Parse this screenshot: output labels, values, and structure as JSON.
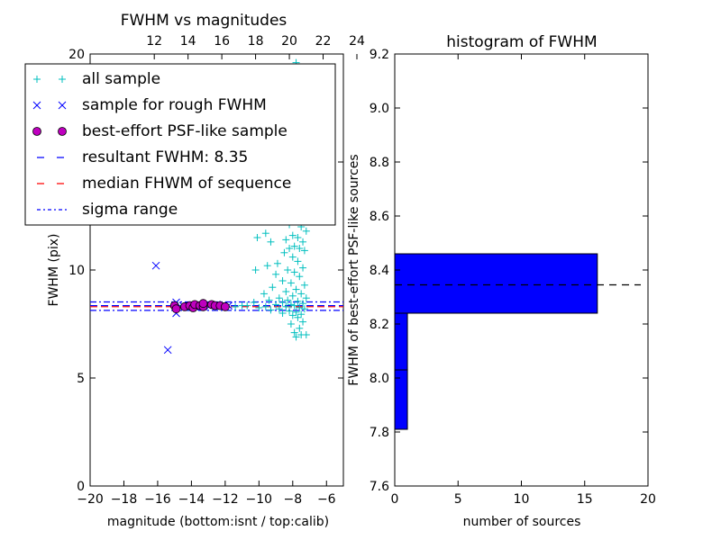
{
  "figure": {
    "left_title": "FWHM vs magnitudes",
    "right_title": "histogram of FWHM"
  },
  "chart_data": [
    {
      "type": "scatter",
      "title": "FWHM vs magnitudes",
      "xlabel": "magnitude (bottom:isnt / top:calib)",
      "ylabel": "FWHM (pix)",
      "xlim": [
        -20,
        -5
      ],
      "ylim": [
        0,
        20
      ],
      "x_ticks": [
        "−20",
        "−18",
        "−16",
        "−14",
        "−12",
        "−10",
        "−8",
        "−6"
      ],
      "x_tick_values": [
        -20,
        -18,
        -16,
        -14,
        -12,
        -10,
        -8,
        -6
      ],
      "y_ticks": [
        "0",
        "5",
        "10",
        "15",
        "20"
      ],
      "y_tick_values": [
        0,
        5,
        10,
        15,
        20
      ],
      "top_axis_ticks": [
        "12",
        "14",
        "16",
        "18",
        "20",
        "22",
        "24"
      ],
      "top_axis_values": [
        12,
        14,
        16,
        18,
        20,
        22,
        24
      ],
      "top_axis_offset": 28.2,
      "grid": false,
      "legend_position": "top-left",
      "legend": [
        {
          "label": "all sample",
          "marker": "+",
          "color": "#00bfbf"
        },
        {
          "label": "sample for rough FWHM",
          "marker": "x",
          "color": "#0000ff"
        },
        {
          "label": "best-effort PSF-like sample",
          "marker": "o",
          "color": "#bf00bf"
        },
        {
          "label": "resultant FWHM: 8.35",
          "line": "dashed",
          "color": "#0000ff"
        },
        {
          "label": "median FHWM of sequence",
          "line": "dashed",
          "color": "#ff0000"
        },
        {
          "label": "sigma range",
          "line": "dashdot",
          "color": "#0000ff"
        }
      ],
      "series": [
        {
          "name": "all sample",
          "marker": "+",
          "color": "#00bfbf",
          "points": [
            [
              -7.8,
              19.6
            ],
            [
              -7.9,
              17.9
            ],
            [
              -7.6,
              17.1
            ],
            [
              -7.4,
              16.4
            ],
            [
              -7.3,
              15.3
            ],
            [
              -7.9,
              14.9
            ],
            [
              -7.5,
              14.6
            ],
            [
              -8.1,
              13.5
            ],
            [
              -7.6,
              13.2
            ],
            [
              -7.3,
              13.0
            ],
            [
              -7.9,
              12.3
            ],
            [
              -8.2,
              12.1
            ],
            [
              -7.5,
              12.0
            ],
            [
              -7.2,
              11.8
            ],
            [
              -9.6,
              11.7
            ],
            [
              -8.0,
              11.6
            ],
            [
              -7.7,
              11.5
            ],
            [
              -10.1,
              11.5
            ],
            [
              -8.4,
              11.4
            ],
            [
              -7.4,
              11.3
            ],
            [
              -9.3,
              11.3
            ],
            [
              -7.9,
              11.1
            ],
            [
              -8.2,
              11.0
            ],
            [
              -7.6,
              11.0
            ],
            [
              -7.3,
              10.9
            ],
            [
              -8.5,
              10.8
            ],
            [
              -8.0,
              10.6
            ],
            [
              -7.7,
              10.4
            ],
            [
              -8.9,
              10.3
            ],
            [
              -9.5,
              10.2
            ],
            [
              -7.4,
              10.1
            ],
            [
              -8.3,
              10.0
            ],
            [
              -10.2,
              10.0
            ],
            [
              -7.9,
              9.9
            ],
            [
              -9.0,
              9.8
            ],
            [
              -7.6,
              9.7
            ],
            [
              -8.6,
              9.5
            ],
            [
              -8.1,
              9.4
            ],
            [
              -7.3,
              9.3
            ],
            [
              -9.2,
              9.2
            ],
            [
              -7.8,
              9.1
            ],
            [
              -8.4,
              9.0
            ],
            [
              -9.7,
              8.9
            ],
            [
              -7.5,
              8.9
            ],
            [
              -8.0,
              8.8
            ],
            [
              -8.8,
              8.7
            ],
            [
              -7.2,
              8.7
            ],
            [
              -8.3,
              8.6
            ],
            [
              -9.4,
              8.6
            ],
            [
              -7.7,
              8.55
            ],
            [
              -10.3,
              8.5
            ],
            [
              -8.6,
              8.5
            ],
            [
              -7.4,
              8.45
            ],
            [
              -9.0,
              8.4
            ],
            [
              -8.1,
              8.4
            ],
            [
              -10.7,
              8.35
            ],
            [
              -7.9,
              8.35
            ],
            [
              -9.6,
              8.3
            ],
            [
              -8.4,
              8.3
            ],
            [
              -7.6,
              8.25
            ],
            [
              -10.0,
              8.25
            ],
            [
              -8.8,
              8.2
            ],
            [
              -7.3,
              8.2
            ],
            [
              -9.3,
              8.15
            ],
            [
              -8.2,
              8.1
            ],
            [
              -7.8,
              8.05
            ],
            [
              -8.6,
              8.0
            ],
            [
              -7.5,
              7.95
            ],
            [
              -8.0,
              7.9
            ],
            [
              -7.7,
              7.8
            ],
            [
              -7.4,
              7.6
            ],
            [
              -8.1,
              7.5
            ],
            [
              -7.6,
              7.3
            ],
            [
              -7.9,
              7.1
            ],
            [
              -7.5,
              7.0
            ],
            [
              -7.2,
              7.0
            ],
            [
              -7.8,
              6.9
            ],
            [
              -11.0,
              8.35
            ],
            [
              -11.4,
              8.3
            ],
            [
              -12.0,
              8.35
            ],
            [
              -12.6,
              8.3
            ],
            [
              -13.5,
              8.35
            ],
            [
              -14.2,
              8.3
            ],
            [
              -14.8,
              8.35
            ]
          ]
        },
        {
          "name": "sample for rough FWHM",
          "marker": "x",
          "color": "#0000ff",
          "points": [
            [
              -16.1,
              10.2
            ],
            [
              -15.4,
              6.3
            ],
            [
              -14.9,
              8.0
            ],
            [
              -14.9,
              8.5
            ],
            [
              -14.5,
              8.35
            ],
            [
              -14.1,
              8.35
            ],
            [
              -13.8,
              8.3
            ],
            [
              -13.5,
              8.4
            ],
            [
              -13.3,
              8.3
            ],
            [
              -12.9,
              8.35
            ],
            [
              -12.5,
              8.4
            ],
            [
              -12.1,
              8.35
            ],
            [
              -11.8,
              8.35
            ]
          ]
        },
        {
          "name": "best-effort PSF-like sample",
          "marker": "o",
          "color": "#bf00bf",
          "points": [
            [
              -15.0,
              8.35
            ],
            [
              -14.9,
              8.2
            ],
            [
              -14.4,
              8.3
            ],
            [
              -14.1,
              8.35
            ],
            [
              -13.9,
              8.25
            ],
            [
              -13.8,
              8.4
            ],
            [
              -13.5,
              8.35
            ],
            [
              -13.3,
              8.3
            ],
            [
              -13.3,
              8.45
            ],
            [
              -12.8,
              8.4
            ],
            [
              -12.6,
              8.35
            ],
            [
              -12.3,
              8.35
            ],
            [
              -12.0,
              8.3
            ]
          ]
        }
      ],
      "hlines": [
        {
          "name": "resultant FWHM: 8.35",
          "y": 8.35,
          "style": "dashed",
          "color": "#0000ff"
        },
        {
          "name": "median FHWM of sequence",
          "y": 8.3,
          "style": "dashed",
          "color": "#ff0000"
        },
        {
          "name": "sigma range",
          "y": 8.52,
          "style": "dashdot",
          "color": "#0000ff"
        },
        {
          "name": "sigma range",
          "y": 8.13,
          "style": "dashdot",
          "color": "#0000ff"
        }
      ]
    },
    {
      "type": "bar",
      "orientation": "horizontal",
      "title": "histogram of FWHM",
      "xlabel": "number of sources",
      "ylabel": "FWHM of best-effort PSF-like sources",
      "xlim": [
        0,
        20
      ],
      "ylim": [
        7.6,
        9.2
      ],
      "x_ticks": [
        "0",
        "5",
        "10",
        "15",
        "20"
      ],
      "x_tick_values": [
        0,
        5,
        10,
        15,
        20
      ],
      "y_ticks": [
        "7.6",
        "7.8",
        "8.0",
        "8.2",
        "8.4",
        "8.6",
        "8.8",
        "9.0",
        "9.2"
      ],
      "y_tick_values": [
        7.6,
        7.8,
        8.0,
        8.2,
        8.4,
        8.6,
        8.8,
        9.0,
        9.2
      ],
      "color": "#0000ff",
      "grid": false,
      "bins": [
        {
          "low": 7.81,
          "high": 8.03,
          "count": 1
        },
        {
          "low": 8.03,
          "high": 8.24,
          "count": 1
        },
        {
          "low": 8.24,
          "high": 8.46,
          "count": 16
        }
      ],
      "hline": {
        "y": 8.345,
        "style": "dashed",
        "color": "#000000"
      }
    }
  ]
}
